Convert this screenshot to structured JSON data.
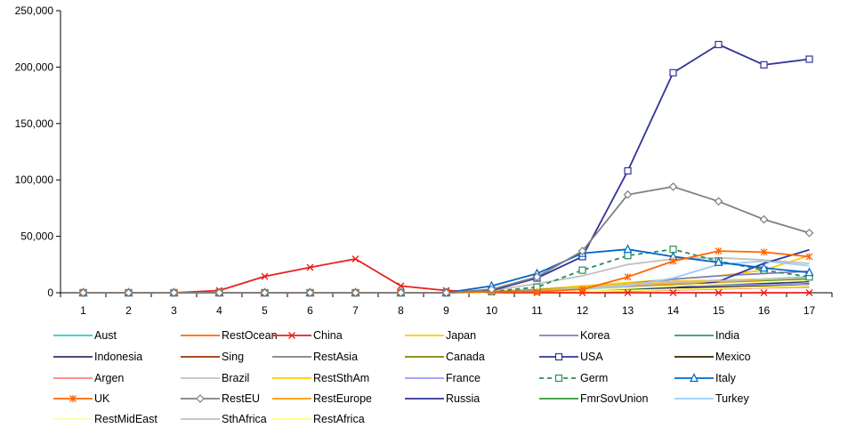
{
  "chart_data": {
    "type": "line",
    "title": "",
    "xlabel": "",
    "ylabel": "",
    "x": [
      1,
      2,
      3,
      4,
      5,
      6,
      7,
      8,
      9,
      10,
      11,
      12,
      13,
      14,
      15,
      16,
      17
    ],
    "ylim": [
      0,
      250000
    ],
    "yticks": [
      0,
      50000,
      100000,
      150000,
      200000,
      250000
    ],
    "ytick_labels": [
      "0",
      "50,000",
      "100,000",
      "150,000",
      "200,000",
      "250,000"
    ],
    "grid": false,
    "legend_position": "bottom",
    "series": [
      {
        "name": "Aust",
        "color": "#33cccc",
        "dash": "",
        "marker": "none",
        "values": [
          0,
          0,
          0,
          0,
          0,
          0,
          0,
          0,
          0,
          500,
          1500,
          3000,
          5000,
          8000,
          10000,
          12000,
          14000
        ]
      },
      {
        "name": "RestOcean",
        "color": "#ff6600",
        "dash": "",
        "marker": "none",
        "values": [
          0,
          0,
          0,
          0,
          0,
          0,
          0,
          0,
          0,
          100,
          300,
          800,
          1500,
          2500,
          3500,
          4500,
          5500
        ]
      },
      {
        "name": "China",
        "color": "#e8201c",
        "dash": "",
        "marker": "x",
        "values": [
          0,
          0,
          0,
          2000,
          14500,
          22500,
          30000,
          6000,
          2000,
          500,
          0,
          0,
          0,
          0,
          0,
          0,
          0
        ]
      },
      {
        "name": "Japan",
        "color": "#ffcc00",
        "dash": "",
        "marker": "none",
        "values": [
          0,
          0,
          0,
          0,
          0,
          0,
          0,
          0,
          0,
          1000,
          3000,
          6000,
          9000,
          12000,
          15000,
          20000,
          33000
        ]
      },
      {
        "name": "Korea",
        "color": "#7f7fbf",
        "dash": "",
        "marker": "none",
        "values": [
          0,
          0,
          0,
          0,
          0,
          0,
          0,
          0,
          0,
          300,
          1500,
          4000,
          8000,
          12000,
          15000,
          17000,
          19000
        ]
      },
      {
        "name": "India",
        "color": "#339966",
        "dash": "",
        "marker": "none",
        "values": [
          0,
          0,
          0,
          0,
          0,
          0,
          0,
          0,
          0,
          200,
          600,
          1500,
          3000,
          5000,
          7000,
          9000,
          11000
        ]
      },
      {
        "name": "Indonesia",
        "color": "#333366",
        "dash": "",
        "marker": "none",
        "values": [
          0,
          0,
          0,
          0,
          0,
          0,
          0,
          0,
          0,
          100,
          400,
          1200,
          2500,
          4000,
          6000,
          8000,
          10000
        ]
      },
      {
        "name": "Sing",
        "color": "#993300",
        "dash": "",
        "marker": "none",
        "values": [
          0,
          0,
          0,
          0,
          0,
          0,
          0,
          0,
          0,
          100,
          300,
          800,
          1800,
          3000,
          4500,
          6000,
          7500
        ]
      },
      {
        "name": "RestAsia",
        "color": "#808080",
        "dash": "",
        "marker": "none",
        "values": [
          0,
          0,
          0,
          0,
          0,
          0,
          0,
          0,
          0,
          300,
          1000,
          2500,
          4500,
          7000,
          9000,
          11000,
          13000
        ]
      },
      {
        "name": "Canada",
        "color": "#808000",
        "dash": "",
        "marker": "none",
        "values": [
          0,
          0,
          0,
          0,
          0,
          0,
          0,
          0,
          0,
          500,
          2500,
          5000,
          8000,
          10000,
          11000,
          12000,
          13000
        ]
      },
      {
        "name": "USA",
        "color": "#333399",
        "dash": "",
        "marker": "square",
        "values": [
          0,
          0,
          0,
          0,
          0,
          0,
          0,
          0,
          0,
          2000,
          13000,
          32000,
          108000,
          195000,
          220000,
          202000,
          207000
        ]
      },
      {
        "name": "Mexico",
        "color": "#332200",
        "dash": "",
        "marker": "none",
        "values": [
          0,
          0,
          0,
          0,
          0,
          0,
          0,
          0,
          0,
          100,
          400,
          1000,
          2000,
          3500,
          5000,
          6500,
          8000
        ]
      },
      {
        "name": "Argen",
        "color": "#ff8080",
        "dash": "",
        "marker": "none",
        "values": [
          0,
          0,
          0,
          0,
          0,
          0,
          0,
          0,
          0,
          100,
          300,
          700,
          1500,
          2500,
          3500,
          4500,
          5000
        ]
      },
      {
        "name": "Brazil",
        "color": "#c0c0c0",
        "dash": "",
        "marker": "none",
        "values": [
          0,
          0,
          0,
          0,
          0,
          0,
          0,
          0,
          0,
          2000,
          8000,
          15000,
          25000,
          30000,
          31000,
          29000,
          26000
        ]
      },
      {
        "name": "RestSthAm",
        "color": "#ffcc00",
        "dash": "",
        "marker": "none",
        "values": [
          0,
          0,
          0,
          0,
          0,
          0,
          0,
          0,
          0,
          500,
          2000,
          5000,
          8000,
          10000,
          11000,
          12000,
          12500
        ]
      },
      {
        "name": "France",
        "color": "#9999ff",
        "dash": "",
        "marker": "none",
        "values": [
          0,
          0,
          0,
          0,
          0,
          0,
          0,
          0,
          0,
          500,
          2000,
          4000,
          5000,
          6000,
          6500,
          7000,
          7500
        ]
      },
      {
        "name": "Germ",
        "color": "#2e8b57",
        "dash": "5,4",
        "marker": "square",
        "values": [
          0,
          0,
          0,
          0,
          0,
          0,
          0,
          0,
          0,
          1000,
          5000,
          20000,
          33000,
          38500,
          28000,
          20000,
          14000
        ]
      },
      {
        "name": "Italy",
        "color": "#0066cc",
        "dash": "",
        "marker": "triangle",
        "values": [
          0,
          0,
          0,
          0,
          0,
          0,
          0,
          0,
          0,
          6000,
          17000,
          35000,
          38500,
          32000,
          27000,
          22000,
          18000
        ]
      },
      {
        "name": "UK",
        "color": "#ff6600",
        "dash": "",
        "marker": "asterisk",
        "values": [
          0,
          0,
          0,
          0,
          0,
          0,
          0,
          0,
          0,
          1000,
          1000,
          3000,
          14000,
          28000,
          37000,
          36000,
          32000
        ]
      },
      {
        "name": "RestEU",
        "color": "#808080",
        "dash": "",
        "marker": "diamond",
        "values": [
          0,
          0,
          0,
          0,
          0,
          0,
          0,
          0,
          0,
          3000,
          14000,
          37000,
          87000,
          94000,
          81000,
          65000,
          53000
        ]
      },
      {
        "name": "RestEurope",
        "color": "#ff9900",
        "dash": "",
        "marker": "none",
        "values": [
          0,
          0,
          0,
          0,
          0,
          0,
          0,
          0,
          0,
          300,
          1000,
          3000,
          6000,
          8000,
          9500,
          10500,
          11500
        ]
      },
      {
        "name": "Russia",
        "color": "#333399",
        "dash": "",
        "marker": "none",
        "values": [
          0,
          0,
          0,
          0,
          0,
          0,
          0,
          0,
          0,
          200,
          500,
          1000,
          2000,
          4000,
          10000,
          26000,
          38000
        ]
      },
      {
        "name": "FmrSovUnion",
        "color": "#339933",
        "dash": "",
        "marker": "none",
        "values": [
          0,
          0,
          0,
          0,
          0,
          0,
          0,
          0,
          0,
          200,
          600,
          1500,
          3500,
          6000,
          8000,
          10000,
          12000
        ]
      },
      {
        "name": "Turkey",
        "color": "#99ccff",
        "dash": "",
        "marker": "none",
        "values": [
          0,
          0,
          0,
          0,
          0,
          0,
          0,
          0,
          0,
          200,
          1000,
          2500,
          6000,
          13000,
          25000,
          28000,
          24000
        ]
      },
      {
        "name": "RestMidEast",
        "color": "#ffff99",
        "dash": "",
        "marker": "none",
        "values": [
          0,
          0,
          0,
          0,
          0,
          0,
          0,
          0,
          0,
          200,
          800,
          2000,
          4000,
          6000,
          8000,
          9500,
          11000
        ]
      },
      {
        "name": "SthAfrica",
        "color": "#c0c0c0",
        "dash": "",
        "marker": "none",
        "values": [
          0,
          0,
          0,
          0,
          0,
          0,
          0,
          0,
          0,
          300,
          1500,
          4000,
          7000,
          9000,
          10500,
          12000,
          13500
        ]
      },
      {
        "name": "RestAfrica",
        "color": "#ffff66",
        "dash": "",
        "marker": "none",
        "values": [
          0,
          0,
          0,
          0,
          0,
          0,
          0,
          0,
          0,
          100,
          400,
          1000,
          2000,
          3000,
          4000,
          5000,
          6000
        ]
      }
    ]
  }
}
